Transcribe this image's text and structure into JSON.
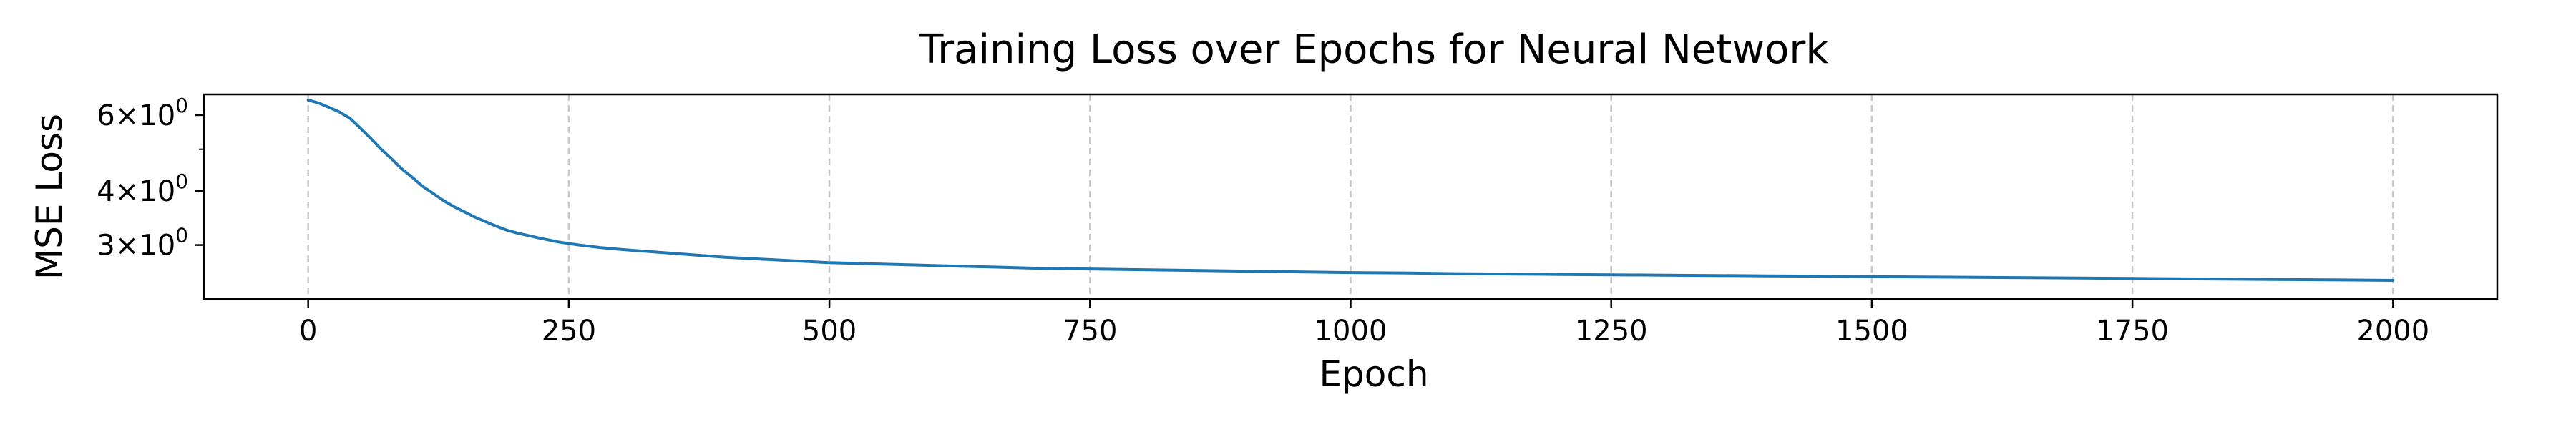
{
  "chart_data": {
    "type": "line",
    "title": "Training Loss over Epochs for Neural Network",
    "xlabel": "Epoch",
    "ylabel": "MSE Loss",
    "xlim": [
      -100,
      2100
    ],
    "ylim": [
      2.25,
      6.7
    ],
    "yscale": "log",
    "grid": {
      "x": true,
      "y": false,
      "style": "dashed"
    },
    "line_color": "#1f77b4",
    "x_ticks": [
      {
        "value": 0,
        "label": "0"
      },
      {
        "value": 250,
        "label": "250"
      },
      {
        "value": 500,
        "label": "500"
      },
      {
        "value": 750,
        "label": "750"
      },
      {
        "value": 1000,
        "label": "1000"
      },
      {
        "value": 1250,
        "label": "1250"
      },
      {
        "value": 1500,
        "label": "1500"
      },
      {
        "value": 1750,
        "label": "1750"
      },
      {
        "value": 2000,
        "label": "2000"
      }
    ],
    "y_ticks": [
      {
        "value": 6,
        "mantissa": "6",
        "base": "10",
        "exponent": "0"
      },
      {
        "value": 4,
        "mantissa": "4",
        "base": "10",
        "exponent": "0"
      },
      {
        "value": 3,
        "mantissa": "3",
        "base": "10",
        "exponent": "0"
      }
    ],
    "y_minor_ticks": [
      5
    ],
    "series": [
      {
        "x": [
          0,
          10,
          20,
          30,
          40,
          50,
          60,
          70,
          80,
          90,
          100,
          110,
          120,
          130,
          140,
          150,
          160,
          170,
          180,
          190,
          200,
          220,
          240,
          260,
          280,
          300,
          325,
          350,
          375,
          400,
          425,
          450,
          475,
          500,
          525,
          550,
          575,
          600,
          625,
          650,
          675,
          700,
          725,
          750,
          775,
          800,
          825,
          850,
          875,
          900,
          925,
          950,
          975,
          1000,
          1050,
          1100,
          1150,
          1200,
          1250,
          1300,
          1350,
          1400,
          1450,
          1500,
          1550,
          1600,
          1650,
          1700,
          1750,
          1800,
          1850,
          1900,
          1950,
          2000
        ],
        "y": [
          6.5,
          6.4,
          6.25,
          6.1,
          5.9,
          5.6,
          5.3,
          5.0,
          4.75,
          4.5,
          4.3,
          4.1,
          3.95,
          3.8,
          3.68,
          3.58,
          3.48,
          3.4,
          3.32,
          3.25,
          3.2,
          3.12,
          3.05,
          3.0,
          2.96,
          2.93,
          2.9,
          2.87,
          2.84,
          2.81,
          2.79,
          2.77,
          2.75,
          2.73,
          2.72,
          2.71,
          2.7,
          2.69,
          2.68,
          2.67,
          2.66,
          2.65,
          2.645,
          2.64,
          2.635,
          2.63,
          2.625,
          2.62,
          2.615,
          2.61,
          2.605,
          2.6,
          2.595,
          2.59,
          2.585,
          2.575,
          2.57,
          2.565,
          2.56,
          2.555,
          2.55,
          2.545,
          2.54,
          2.535,
          2.53,
          2.525,
          2.52,
          2.515,
          2.51,
          2.505,
          2.5,
          2.495,
          2.49,
          2.485
        ]
      }
    ]
  }
}
